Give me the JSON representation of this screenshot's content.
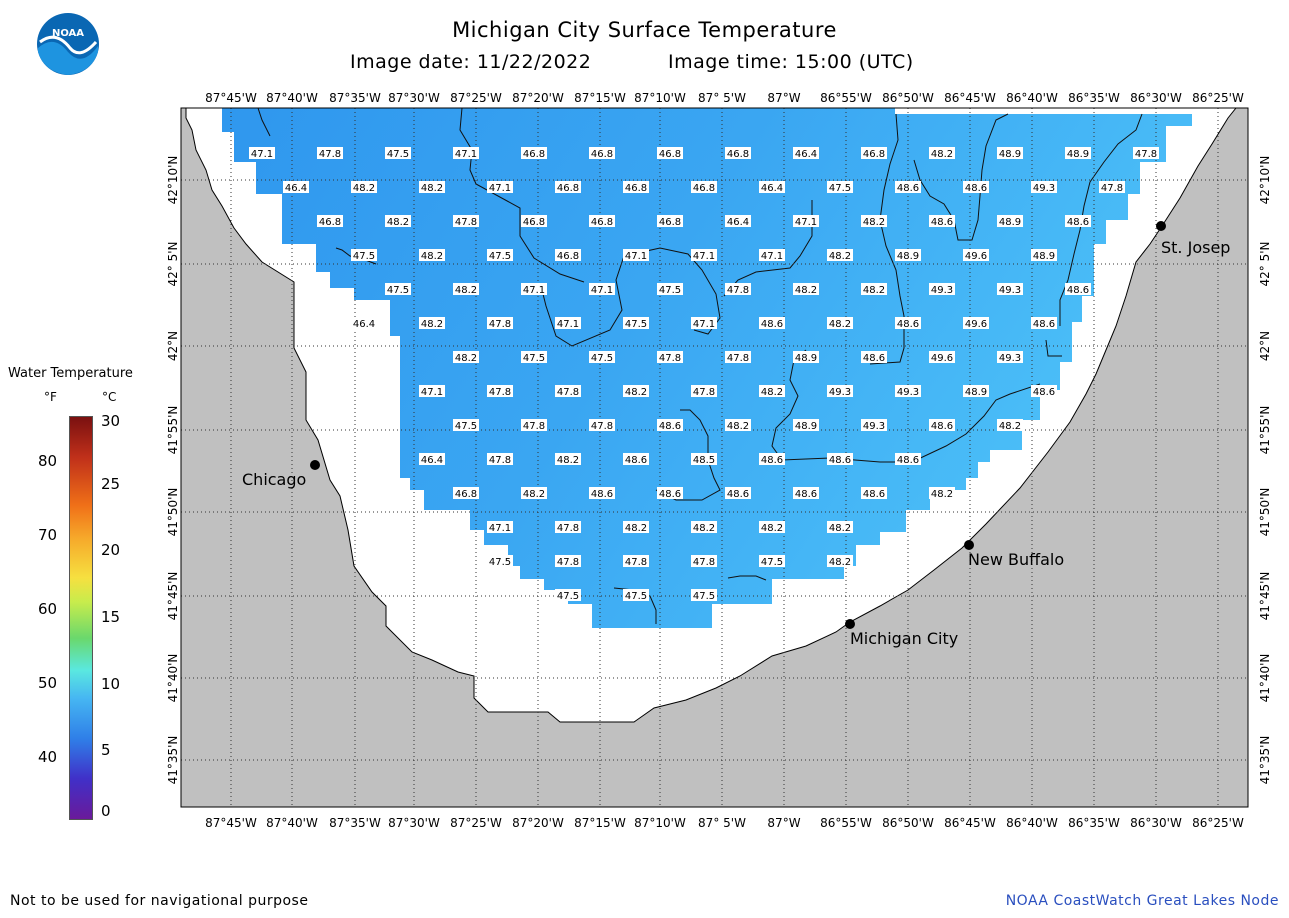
{
  "title": "Michigan City Surface Temperature",
  "image_date": "Image date: 11/22/2022",
  "image_time": "Image time: 15:00 (UTC)",
  "logo_text": "NOAA",
  "legend": {
    "title": "Water Temperature",
    "unit_f": "°F",
    "unit_c": "°C",
    "fahrenheit_ticks": [
      "80",
      "70",
      "60",
      "50",
      "40"
    ],
    "celsius_ticks": [
      "30",
      "25",
      "20",
      "15",
      "10",
      "5",
      "0"
    ]
  },
  "longitude_labels": [
    "87°45'W",
    "87°40'W",
    "87°35'W",
    "87°30'W",
    "87°25'W",
    "87°20'W",
    "87°15'W",
    "87°10'W",
    "87° 5'W",
    "87°W",
    "86°55'W",
    "86°50'W",
    "86°45'W",
    "86°40'W",
    "86°35'W",
    "86°30'W",
    "86°25'W"
  ],
  "latitude_labels": [
    "42°10'N",
    "42° 5'N",
    "42°N",
    "41°55'N",
    "41°50'N",
    "41°45'N",
    "41°40'N",
    "41°35'N"
  ],
  "cities": [
    {
      "name": "Chicago"
    },
    {
      "name": "St. Josep"
    },
    {
      "name": "New Buffalo"
    },
    {
      "name": "Michigan City"
    }
  ],
  "temperature_rows": [
    [
      "47.1",
      "47.8",
      "47.5",
      "47.1",
      "46.8",
      "46.8",
      "46.8",
      "46.8",
      "46.4",
      "46.8",
      "48.2",
      "48.9",
      "48.9",
      "47.8"
    ],
    [
      "46.4",
      "48.2",
      "48.2",
      "47.1",
      "46.8",
      "46.8",
      "46.8",
      "46.4",
      "47.5",
      "48.6",
      "48.6",
      "49.3",
      "47.8"
    ],
    [
      "46.8",
      "48.2",
      "47.8",
      "46.8",
      "46.8",
      "46.8",
      "46.4",
      "47.1",
      "48.2",
      "48.6",
      "48.9",
      "48.6"
    ],
    [
      "47.5",
      "48.2",
      "47.5",
      "46.8",
      "47.1",
      "47.1",
      "47.1",
      "48.2",
      "48.9",
      "49.6",
      "48.9"
    ],
    [
      "47.5",
      "48.2",
      "47.1",
      "47.1",
      "47.5",
      "47.8",
      "48.2",
      "48.2",
      "49.3",
      "49.3",
      "48.6"
    ],
    [
      "46.4",
      "48.2",
      "47.8",
      "47.1",
      "47.5",
      "47.1",
      "48.6",
      "48.2",
      "48.6",
      "49.6",
      "48.6"
    ],
    [
      "48.2",
      "47.5",
      "47.5",
      "47.8",
      "47.8",
      "48.9",
      "48.6",
      "49.6",
      "49.3"
    ],
    [
      "47.1",
      "47.8",
      "47.8",
      "48.2",
      "47.8",
      "48.2",
      "49.3",
      "49.3",
      "48.9",
      "48.6"
    ],
    [
      "47.5",
      "47.8",
      "47.8",
      "48.6",
      "48.2",
      "48.9",
      "49.3",
      "48.6",
      "48.2"
    ],
    [
      "46.4",
      "47.8",
      "48.2",
      "48.6",
      "48.5",
      "48.6",
      "48.6",
      "48.6"
    ],
    [
      "46.8",
      "48.2",
      "48.6",
      "48.6",
      "48.6",
      "48.6",
      "48.6",
      "48.2"
    ],
    [
      "47.1",
      "47.8",
      "48.2",
      "48.2",
      "48.2",
      "48.2"
    ],
    [
      "47.5",
      "47.8",
      "47.8",
      "47.8",
      "47.5",
      "48.2"
    ],
    [
      "47.5",
      "47.5",
      "47.5"
    ]
  ],
  "colors": {
    "land": "#c0c0c0",
    "water_cool": "#2f97ee",
    "water_mid": "#3aa6f2",
    "water_warm": "#4cc0f8",
    "no_data": "#ffffff",
    "footer_right": "#2a4fbf"
  },
  "footer_left": "Not to be used for navigational purpose",
  "footer_right": "NOAA CoastWatch Great Lakes Node"
}
